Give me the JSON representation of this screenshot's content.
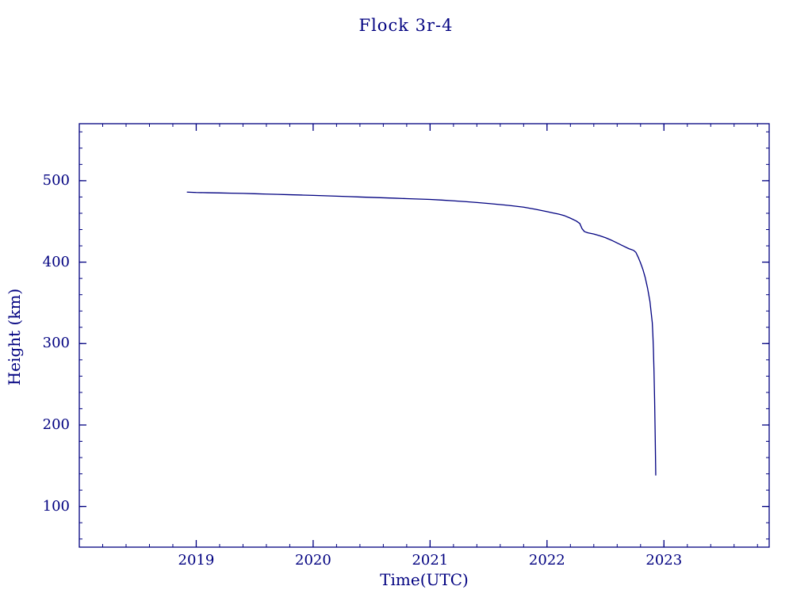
{
  "colors": {
    "accent": "#000080",
    "background": "#ffffff"
  },
  "chart_data": {
    "type": "line",
    "title": "Flock 3r-4",
    "xlabel": "Time(UTC)",
    "ylabel": "Height (km)",
    "xlim": [
      2018.0,
      2023.9
    ],
    "ylim": [
      50,
      570
    ],
    "xticks": [
      2019,
      2020,
      2021,
      2022,
      2023
    ],
    "yticks": [
      100,
      200,
      300,
      400,
      500
    ],
    "x_minor_step": 0.2,
    "y_minor_step": 20,
    "grid": "off",
    "legend": "none",
    "line_color": "#000080",
    "frame_color": "#000080",
    "series": [
      {
        "name": "height",
        "x": [
          2018.92,
          2019.0,
          2019.1,
          2019.2,
          2019.3,
          2019.4,
          2019.5,
          2019.6,
          2019.7,
          2019.8,
          2019.9,
          2020.0,
          2020.1,
          2020.2,
          2020.3,
          2020.4,
          2020.5,
          2020.6,
          2020.7,
          2020.8,
          2020.9,
          2021.0,
          2021.1,
          2021.2,
          2021.3,
          2021.4,
          2021.5,
          2021.6,
          2021.7,
          2021.8,
          2021.9,
          2022.0,
          2022.05,
          2022.1,
          2022.15,
          2022.2,
          2022.25,
          2022.28,
          2022.3,
          2022.32,
          2022.35,
          2022.4,
          2022.45,
          2022.5,
          2022.55,
          2022.6,
          2022.65,
          2022.7,
          2022.72,
          2022.74,
          2022.76,
          2022.78,
          2022.8,
          2022.82,
          2022.84,
          2022.86,
          2022.88,
          2022.9,
          2022.905,
          2022.91,
          2022.915,
          2022.92,
          2022.925,
          2022.93
        ],
        "y": [
          486,
          485.5,
          485.2,
          485,
          484.7,
          484.4,
          484,
          483.6,
          483.2,
          482.8,
          482.4,
          482,
          481.5,
          481,
          480.5,
          480,
          479.5,
          479,
          478.5,
          478,
          477.5,
          477,
          476.2,
          475.3,
          474.3,
          473.2,
          472,
          470.7,
          469.2,
          467.5,
          465,
          462,
          460.5,
          459,
          457,
          454,
          450.5,
          447.5,
          441,
          437.5,
          436,
          434.5,
          432.5,
          430,
          427,
          423.5,
          420,
          416.5,
          415.5,
          414.5,
          412,
          406,
          399,
          391,
          381,
          368,
          352,
          326,
          312,
          293,
          266,
          232,
          188,
          138
        ]
      }
    ]
  }
}
